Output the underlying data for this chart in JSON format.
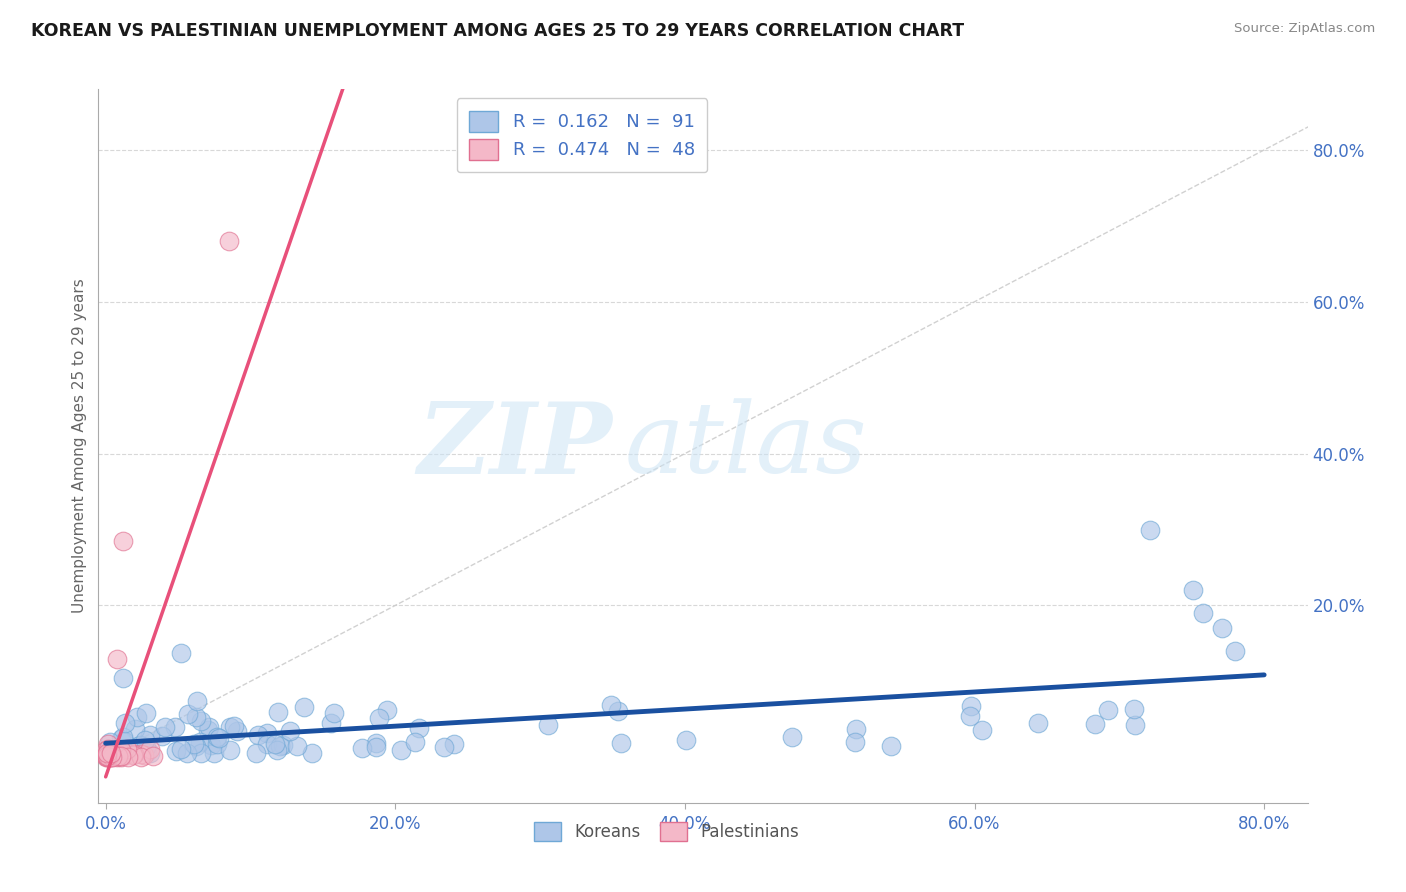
{
  "title": "KOREAN VS PALESTINIAN UNEMPLOYMENT AMONG AGES 25 TO 29 YEARS CORRELATION CHART",
  "source_text": "Source: ZipAtlas.com",
  "ylabel": "Unemployment Among Ages 25 to 29 years",
  "xlim": [
    -0.005,
    0.83
  ],
  "ylim": [
    -0.06,
    0.88
  ],
  "xticks": [
    0.0,
    0.2,
    0.4,
    0.6,
    0.8
  ],
  "yticks": [
    0.2,
    0.4,
    0.6,
    0.8
  ],
  "xticklabels": [
    "0.0%",
    "20.0%",
    "40.0%",
    "60.0%",
    "80.0%"
  ],
  "yticklabels": [
    "20.0%",
    "40.0%",
    "60.0%",
    "80.0%"
  ],
  "korean_color": "#aec6e8",
  "korean_edge_color": "#6fa8d6",
  "palestinian_color": "#f4b8c8",
  "palestinian_edge_color": "#e07090",
  "korean_trend_color": "#1a50a0",
  "palestinian_trend_color": "#e8507a",
  "ref_line_color": "#cccccc",
  "tick_color": "#4472c4",
  "R_korean": 0.162,
  "N_korean": 91,
  "R_palestinian": 0.474,
  "N_palestinian": 48,
  "legend_label_korean": "Koreans",
  "legend_label_palestinian": "Palestinians",
  "watermark_zip": "ZIP",
  "watermark_atlas": "atlas",
  "background_color": "#ffffff"
}
